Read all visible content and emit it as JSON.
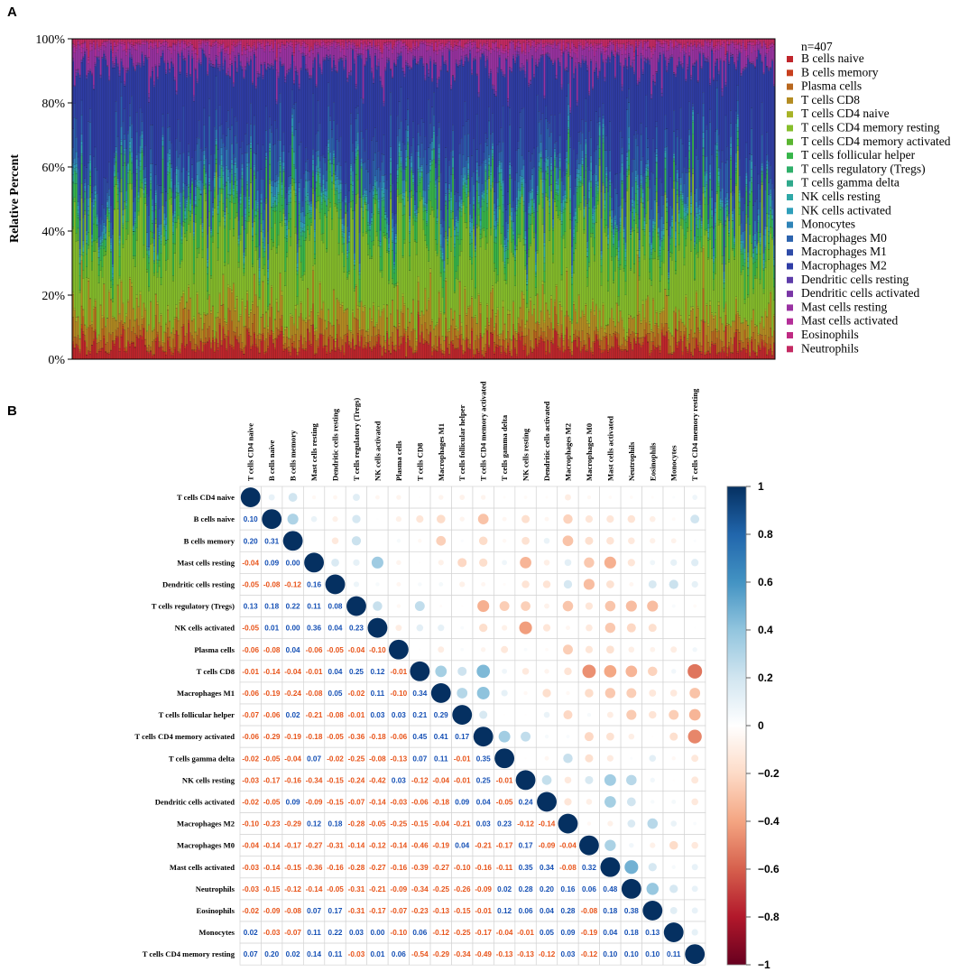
{
  "panel_a": {
    "label": "A",
    "n_label": "n=407",
    "ylabel": "Relative Percent",
    "yticks": [
      "0%",
      "20%",
      "40%",
      "60%",
      "80%",
      "100%"
    ],
    "chart_data": {
      "type": "bar",
      "stacked": true,
      "title": "",
      "ylabel": "Relative Percent",
      "ylim": [
        0,
        100
      ],
      "n_samples": 407,
      "series_names": [
        "B cells naive",
        "B cells memory",
        "Plasma cells",
        "T cells CD8",
        "T cells CD4 naive",
        "T cells CD4 memory resting",
        "T cells CD4 memory activated",
        "T cells follicular helper",
        "T cells regulatory (Tregs)",
        "T cells gamma delta",
        "NK cells resting",
        "NK cells activated",
        "Monocytes",
        "Macrophages M0",
        "Macrophages M1",
        "Macrophages M2",
        "Dendritic cells resting",
        "Dendritic cells activated",
        "Mast cells resting",
        "Mast cells activated",
        "Eosinophils",
        "Neutrophils"
      ],
      "mean_composition_percent": [
        4,
        0.5,
        3,
        6,
        0.5,
        22,
        2,
        6,
        2,
        0.5,
        1.5,
        1,
        2,
        6,
        6,
        28,
        0.5,
        0.5,
        5,
        1,
        0.5,
        1.5
      ]
    },
    "legend": {
      "colors": [
        "#C0262C",
        "#C8401E",
        "#B8671F",
        "#B48C22",
        "#A8B327",
        "#86BE2B",
        "#5AB531",
        "#37B54A",
        "#2FAF6A",
        "#2FA98C",
        "#2FA8A7",
        "#2F9FBA",
        "#2F84B8",
        "#2C63AE",
        "#2F4CA8",
        "#2F3DA6",
        "#5D3CA9",
        "#7A36A6",
        "#9A32A2",
        "#B42E98",
        "#C02B83",
        "#C42A62"
      ]
    }
  },
  "panel_b": {
    "label": "B",
    "chart_data": {
      "type": "heatmap",
      "title": "",
      "labels": [
        "T cells CD4 naive",
        "B cells naive",
        "B cells memory",
        "Mast cells resting",
        "Dendritic cells resting",
        "T cells regulatory (Tregs)",
        "NK cells activated",
        "Plasma cells",
        "T cells CD8",
        "Macrophages M1",
        "T cells follicular helper",
        "T cells CD4 memory activated",
        "T cells gamma delta",
        "NK cells resting",
        "Dendritic cells activated",
        "Macrophages M2",
        "Macrophages M0",
        "Mast cells activated",
        "Neutrophils",
        "Eosinophils",
        "Monocytes",
        "T cells CD4 memory resting"
      ],
      "lower_triangle_text": [
        [],
        [
          "0.10"
        ],
        [
          "0.20",
          "0.31"
        ],
        [
          "-0.04",
          "0.09",
          "0.00"
        ],
        [
          "-0.05",
          "-0.08",
          "-0.12",
          "0.16"
        ],
        [
          "0.13",
          "0.18",
          "0.22",
          "0.11",
          "0.08"
        ],
        [
          "-0.05",
          "0.01",
          "0.00",
          "0.36",
          "0.04",
          "0.23"
        ],
        [
          "-0.06",
          "-0.08",
          "0.04",
          "-0.06",
          "-0.05",
          "-0.04",
          "-0.10"
        ],
        [
          "-0.01",
          "-0.14",
          "-0.04",
          "-0.01",
          "0.04",
          "0.25",
          "0.12",
          "-0.01"
        ],
        [
          "-0.06",
          "-0.19",
          "-0.24",
          "-0.08",
          "0.05",
          "-0.02",
          "0.11",
          "-0.10",
          "0.34"
        ],
        [
          "-0.07",
          "-0.06",
          "0.02",
          "-0.21",
          "-0.08",
          "-0.01",
          "0.03",
          "0.03",
          "0.21",
          "0.29"
        ],
        [
          "-0.06",
          "-0.29",
          "-0.19",
          "-0.18",
          "-0.05",
          "-0.36",
          "-0.18",
          "-0.06",
          "0.45",
          "0.41",
          "0.17"
        ],
        [
          "-0.02",
          "-0.05",
          "-0.04",
          "0.07",
          "-0.02",
          "-0.25",
          "-0.08",
          "-0.13",
          "0.07",
          "0.11",
          "-0.01",
          "0.35"
        ],
        [
          "-0.03",
          "-0.17",
          "-0.16",
          "-0.34",
          "-0.15",
          "-0.24",
          "-0.42",
          "0.03",
          "-0.12",
          "-0.04",
          "-0.01",
          "0.25",
          "-0.01"
        ],
        [
          "-0.02",
          "-0.05",
          "0.09",
          "-0.09",
          "-0.15",
          "-0.07",
          "-0.14",
          "-0.03",
          "-0.06",
          "-0.18",
          "0.09",
          "0.04",
          "-0.05",
          "0.24"
        ],
        [
          "-0.10",
          "-0.23",
          "-0.29",
          "0.12",
          "0.18",
          "-0.28",
          "-0.05",
          "-0.25",
          "-0.15",
          "-0.04",
          "-0.21",
          "0.03",
          "0.23",
          "-0.12",
          "-0.14"
        ],
        [
          "-0.04",
          "-0.14",
          "-0.17",
          "-0.27",
          "-0.31",
          "-0.14",
          "-0.12",
          "-0.14",
          "-0.46",
          "-0.19",
          "0.04",
          "-0.21",
          "-0.17",
          "0.17",
          "-0.09",
          "-0.04"
        ],
        [
          "-0.03",
          "-0.14",
          "-0.15",
          "-0.36",
          "-0.16",
          "-0.28",
          "-0.27",
          "-0.16",
          "-0.39",
          "-0.27",
          "-0.10",
          "-0.16",
          "-0.11",
          "0.35",
          "0.34",
          "-0.08",
          "0.32"
        ],
        [
          "-0.03",
          "-0.15",
          "-0.12",
          "-0.14",
          "-0.05",
          "-0.31",
          "-0.21",
          "-0.09",
          "-0.34",
          "-0.25",
          "-0.26",
          "-0.09",
          "0.02",
          "0.28",
          "0.20",
          "0.16",
          "0.06",
          "0.48"
        ],
        [
          "-0.02",
          "-0.09",
          "-0.08",
          "0.07",
          "0.17",
          "-0.31",
          "-0.17",
          "-0.07",
          "-0.23",
          "-0.13",
          "-0.15",
          "-0.01",
          "0.12",
          "0.06",
          "0.04",
          "0.28",
          "-0.08",
          "0.18",
          "0.38"
        ],
        [
          "0.02",
          "-0.03",
          "-0.07",
          "0.11",
          "0.22",
          "0.03",
          "0.00",
          "-0.10",
          "0.06",
          "-0.12",
          "-0.25",
          "-0.17",
          "-0.04",
          "-0.01",
          "0.05",
          "0.09",
          "-0.19",
          "0.04",
          "0.18",
          "0.13"
        ],
        [
          "0.07",
          "0.20",
          "0.02",
          "0.14",
          "0.11",
          "-0.03",
          "0.01",
          "0.06",
          "-0.54",
          "-0.29",
          "-0.34",
          "-0.49",
          "-0.13",
          "-0.13",
          "-0.12",
          "0.03",
          "-0.12",
          "0.10",
          "0.10",
          "0.10",
          "0.11"
        ]
      ],
      "colorbar_ticks": [
        "1",
        "0.8",
        "0.6",
        "0.4",
        "0.2",
        "0",
        "−0.2",
        "−0.4",
        "−0.6",
        "−0.8",
        "−1"
      ],
      "colorbar_range": [
        -1,
        1
      ],
      "colors": {
        "positive": "#053061",
        "neutral": "#FFFFFF",
        "negative": "#67001F"
      }
    }
  }
}
